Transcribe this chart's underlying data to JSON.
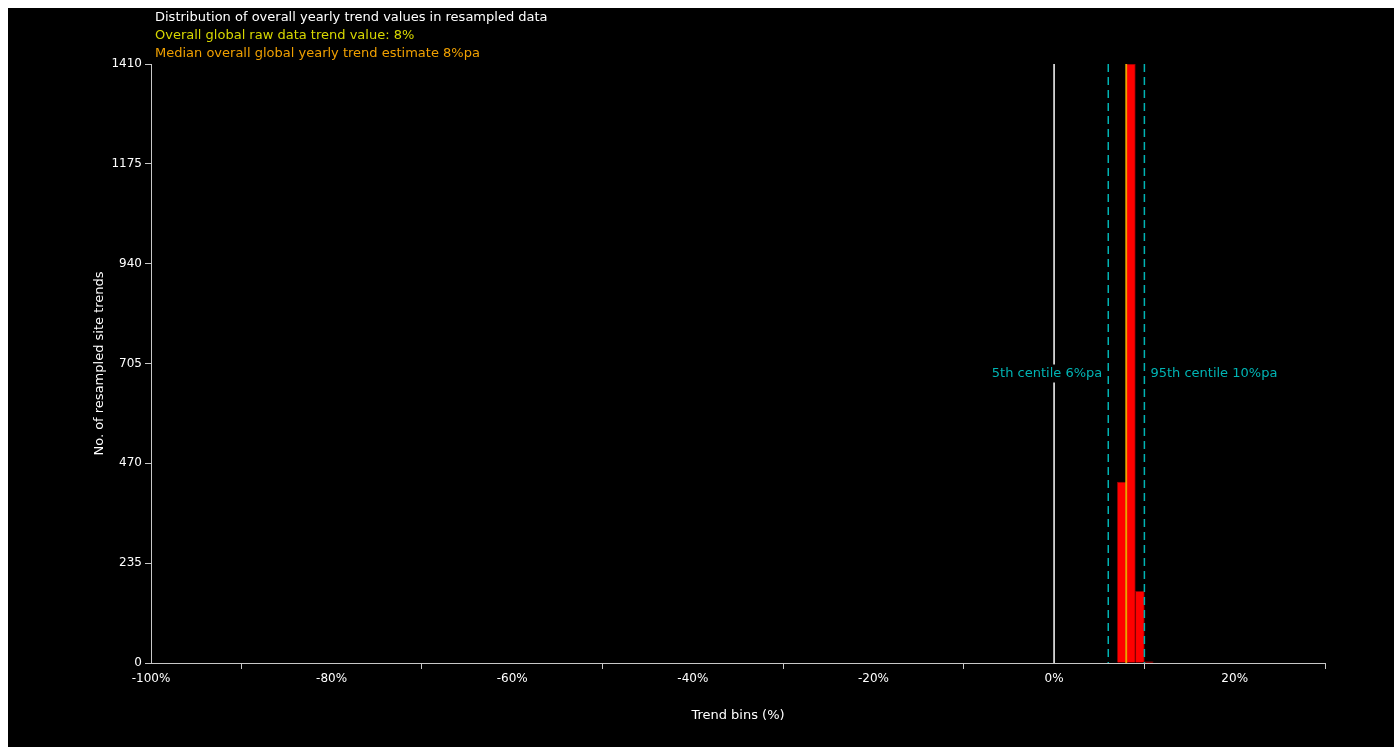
{
  "chart_data": {
    "type": "histogram",
    "title": "Distribution of overall yearly trend values in resampled data",
    "xlabel": "Trend bins (%)",
    "ylabel": "No. of resampled site trends",
    "bins": [
      7,
      8,
      9,
      10,
      11
    ],
    "values": [
      426,
      1410,
      169,
      3
    ],
    "color": "#ff0000",
    "xlim": [
      -100,
      30
    ],
    "xticks": [
      {
        "value": -100,
        "label": "-100%"
      },
      {
        "value": -80,
        "label": "-80%"
      },
      {
        "value": -60,
        "label": "-60%"
      },
      {
        "value": -40,
        "label": "-40%"
      },
      {
        "value": -20,
        "label": "-20%"
      },
      {
        "value": 0,
        "label": "0%"
      },
      {
        "value": 20,
        "label": "20%"
      }
    ],
    "ylim": [
      0,
      1410
    ],
    "yticks": [
      0,
      235,
      470,
      705,
      940,
      1175,
      1410
    ],
    "ref_lines": [
      {
        "axis": "x",
        "value": 0,
        "color": "#ffffff",
        "line_style": "solid"
      },
      {
        "axis": "x",
        "value": 8,
        "label": "Overall global raw data trend value: 8%",
        "color": "#d8d800",
        "line_style": "solid"
      },
      {
        "axis": "x",
        "value": 8,
        "label": "Median overall global yearly trend estimate 8%pa",
        "color": "#f0a000",
        "line_style": "solid"
      },
      {
        "axis": "x",
        "value": 6,
        "label": "5th centile 6%pa",
        "color": "#00b4b4",
        "line_style": "dashed"
      },
      {
        "axis": "x",
        "value": 10,
        "label": "95th centile 10%pa",
        "color": "#00b4b4",
        "line_style": "dashed"
      }
    ],
    "grid": false,
    "legend": false
  }
}
